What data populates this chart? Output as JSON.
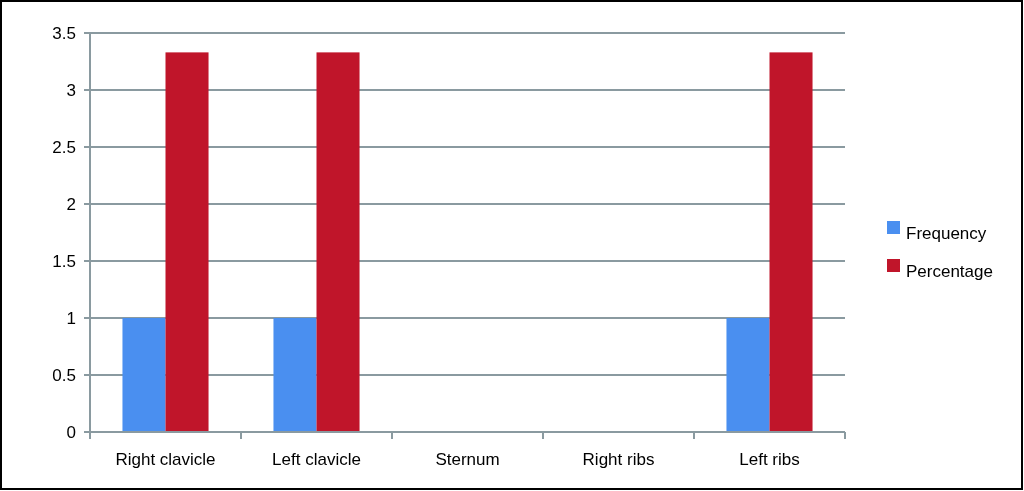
{
  "chart_data": {
    "type": "bar",
    "categories": [
      "Right clavicle",
      "Left clavicle",
      "Sternum",
      "Right ribs",
      "Left ribs"
    ],
    "series": [
      {
        "name": "Frequency",
        "color": "#4a8ff0",
        "values": [
          1,
          1,
          0,
          0,
          1
        ]
      },
      {
        "name": "Percentage",
        "color": "#c0152a",
        "values": [
          3.33,
          3.33,
          0,
          0,
          3.33
        ]
      }
    ],
    "ylim": [
      0,
      3.5
    ],
    "yticks": [
      0,
      0.5,
      1,
      1.5,
      2,
      2.5,
      3,
      3.5
    ],
    "grid": "y",
    "legend": "right"
  }
}
